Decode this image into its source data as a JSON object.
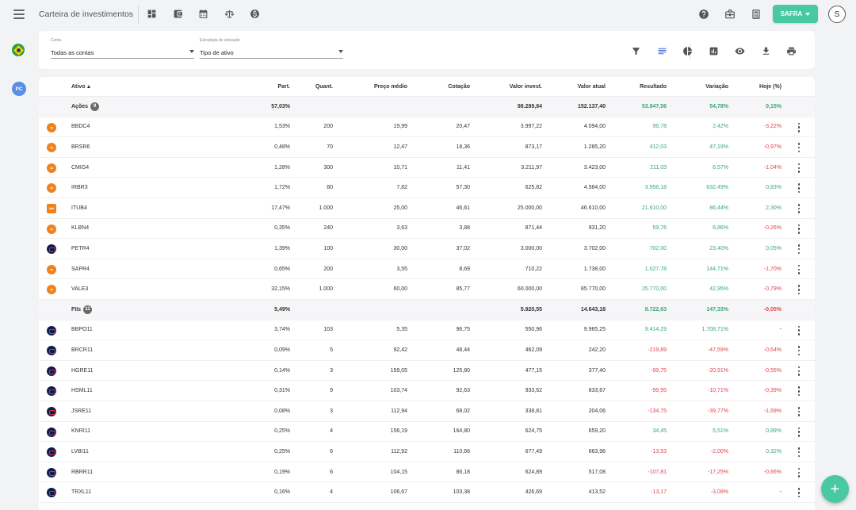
{
  "header": {
    "title": "Carteira de investimentos",
    "toolbar_icons": [
      "dashboard-icon",
      "wallet-icon",
      "calendar-icon",
      "balance-scale-icon",
      "dollar-circle-icon"
    ],
    "right_icons": [
      "help-icon",
      "briefcase-icon",
      "calculator-icon"
    ],
    "bank_label": "SAFRA",
    "user_initial": "S"
  },
  "side": {
    "pc_label": "PC"
  },
  "filters": {
    "conta_label": "Conta",
    "conta_value": "Todas as contas",
    "estrategia_label": "Estratégia de alocação",
    "estrategia_value": "Tipo de ativo",
    "actions": [
      "filter-icon",
      "list-view-icon",
      "pie-chart-icon",
      "bar-chart-icon",
      "eye-icon",
      "download-icon",
      "print-icon"
    ]
  },
  "colors": {
    "accent": "#49c9a0",
    "positive": "#3aa67a",
    "negative": "#e0454f",
    "active_icon": "#3f6ad8"
  },
  "table": {
    "columns": {
      "ativo": "Ativo",
      "part": "Part.",
      "quant": "Quant.",
      "preco": "Preço médio",
      "cotacao": "Cotação",
      "invest": "Valor invest.",
      "atual": "Valor atual",
      "resultado": "Resultado",
      "variacao": "Variação",
      "hoje": "Hoje (%)"
    },
    "rows": [
      {
        "group": true,
        "ativo": "Ações",
        "count": "9",
        "part": "57,03%",
        "quant": "",
        "preco": "",
        "cotacao": "",
        "invest": "98.289,84",
        "atual": "152.137,40",
        "resultado": "53.847,56",
        "variacao": "54,78%",
        "hoje": "0,15%",
        "res_s": "pos",
        "var_s": "pos",
        "hoje_s": "pos"
      },
      {
        "logo": "orange",
        "logo_text": "xp",
        "ativo": "BBDC4",
        "part": "1,53%",
        "quant": "200",
        "preco": "19,99",
        "cotacao": "20,47",
        "invest": "3.997,22",
        "atual": "4.094,00",
        "resultado": "96,78",
        "variacao": "2,42%",
        "hoje": "-3,22%",
        "res_s": "pos",
        "var_s": "pos",
        "hoje_s": "neg"
      },
      {
        "logo": "orange",
        "logo_text": "xp",
        "ativo": "BRSR6",
        "part": "0,48%",
        "quant": "70",
        "preco": "12,47",
        "cotacao": "18,36",
        "invest": "873,17",
        "atual": "1.285,20",
        "resultado": "412,03",
        "variacao": "47,19%",
        "hoje": "-0,97%",
        "res_s": "pos",
        "var_s": "pos",
        "hoje_s": "neg"
      },
      {
        "logo": "orange",
        "logo_text": "xp",
        "ativo": "CMIG4",
        "part": "1,28%",
        "quant": "300",
        "preco": "10,71",
        "cotacao": "11,41",
        "invest": "3.211,97",
        "atual": "3.423,00",
        "resultado": "211,03",
        "variacao": "6,57%",
        "hoje": "-1,04%",
        "res_s": "pos",
        "var_s": "pos",
        "hoje_s": "neg"
      },
      {
        "logo": "orange",
        "logo_text": "xp",
        "ativo": "IRBR3",
        "part": "1,72%",
        "quant": "80",
        "preco": "7,82",
        "cotacao": "57,30",
        "invest": "625,82",
        "atual": "4.584,00",
        "resultado": "3.958,18",
        "variacao": "632,49%",
        "hoje": "0,83%",
        "res_s": "pos",
        "var_s": "pos",
        "hoje_s": "pos"
      },
      {
        "logo": "orange sq",
        "logo_text": "itaú",
        "ativo": "ITUB4",
        "part": "17,47%",
        "quant": "1.000",
        "preco": "25,00",
        "cotacao": "46,61",
        "invest": "25.000,00",
        "atual": "46.610,00",
        "resultado": "21.610,00",
        "variacao": "86,44%",
        "hoje": "2,30%",
        "res_s": "pos",
        "var_s": "pos",
        "hoje_s": "pos"
      },
      {
        "logo": "orange",
        "logo_text": "xp",
        "ativo": "KLBN4",
        "part": "0,35%",
        "quant": "240",
        "preco": "3,63",
        "cotacao": "3,88",
        "invest": "871,44",
        "atual": "931,20",
        "resultado": "59,76",
        "variacao": "6,86%",
        "hoje": "-0,26%",
        "res_s": "pos",
        "var_s": "pos",
        "hoje_s": "neg"
      },
      {
        "logo": "navy",
        "logo_text": "",
        "ativo": "PETR4",
        "part": "1,39%",
        "quant": "100",
        "preco": "30,00",
        "cotacao": "37,02",
        "invest": "3.000,00",
        "atual": "3.702,00",
        "resultado": "702,00",
        "variacao": "23,40%",
        "hoje": "0,05%",
        "res_s": "pos",
        "var_s": "pos",
        "hoje_s": "pos"
      },
      {
        "logo": "orange",
        "logo_text": "xp",
        "ativo": "SAPR4",
        "part": "0,65%",
        "quant": "200",
        "preco": "3,55",
        "cotacao": "8,69",
        "invest": "710,22",
        "atual": "1.738,00",
        "resultado": "1.027,78",
        "variacao": "144,71%",
        "hoje": "-1,70%",
        "res_s": "pos",
        "var_s": "pos",
        "hoje_s": "neg"
      },
      {
        "logo": "orange",
        "logo_text": "xp",
        "ativo": "VALE3",
        "part": "32,15%",
        "quant": "1.000",
        "preco": "60,00",
        "cotacao": "85,77",
        "invest": "60.000,00",
        "atual": "85.770,00",
        "resultado": "25.770,00",
        "variacao": "42,95%",
        "hoje": "-0,79%",
        "res_s": "pos",
        "var_s": "pos",
        "hoje_s": "neg"
      },
      {
        "group": true,
        "ativo": "FIIs",
        "count": "11",
        "part": "5,49%",
        "quant": "",
        "preco": "",
        "cotacao": "",
        "invest": "5.920,55",
        "atual": "14.643,18",
        "resultado": "8.722,63",
        "variacao": "147,33%",
        "hoje": "-0,05%",
        "res_s": "pos",
        "var_s": "pos",
        "hoje_s": "neg"
      },
      {
        "logo": "navy",
        "logo_text": "",
        "ativo": "BBPO11",
        "part": "3,74%",
        "quant": "103",
        "preco": "5,35",
        "cotacao": "96,75",
        "invest": "550,96",
        "atual": "9.965,25",
        "resultado": "9.414,29",
        "variacao": "1.708,71%",
        "hoje": "-",
        "res_s": "pos",
        "var_s": "pos",
        "hoje_s": ""
      },
      {
        "logo": "navy",
        "logo_text": "",
        "ativo": "BRCR11",
        "part": "0,09%",
        "quant": "5",
        "preco": "92,42",
        "cotacao": "48,44",
        "invest": "462,09",
        "atual": "242,20",
        "resultado": "-219,89",
        "variacao": "-47,59%",
        "hoje": "-0,64%",
        "res_s": "neg",
        "var_s": "neg",
        "hoje_s": "neg"
      },
      {
        "logo": "navy",
        "logo_text": "",
        "ativo": "HGRE11",
        "part": "0,14%",
        "quant": "3",
        "preco": "159,05",
        "cotacao": "125,80",
        "invest": "477,15",
        "atual": "377,40",
        "resultado": "-99,75",
        "variacao": "-20,91%",
        "hoje": "-0,55%",
        "res_s": "neg",
        "var_s": "neg",
        "hoje_s": "neg"
      },
      {
        "logo": "navy",
        "logo_text": "",
        "ativo": "HSML11",
        "part": "0,31%",
        "quant": "9",
        "preco": "103,74",
        "cotacao": "92,63",
        "invest": "933,62",
        "atual": "833,67",
        "resultado": "-99,95",
        "variacao": "-10,71%",
        "hoje": "-0,39%",
        "res_s": "neg",
        "var_s": "neg",
        "hoje_s": "neg"
      },
      {
        "logo": "navy",
        "logo_text": "",
        "ativo": "JSRE11",
        "part": "0,08%",
        "quant": "3",
        "preco": "112,94",
        "cotacao": "68,02",
        "invest": "338,81",
        "atual": "204,06",
        "resultado": "-134,75",
        "variacao": "-39,77%",
        "hoje": "-1,69%",
        "res_s": "neg",
        "var_s": "neg",
        "hoje_s": "neg"
      },
      {
        "logo": "navy",
        "logo_text": "",
        "ativo": "KNRI11",
        "part": "0,25%",
        "quant": "4",
        "preco": "156,19",
        "cotacao": "164,80",
        "invest": "624,75",
        "atual": "659,20",
        "resultado": "34,45",
        "variacao": "5,51%",
        "hoje": "0,89%",
        "res_s": "pos",
        "var_s": "pos",
        "hoje_s": "pos"
      },
      {
        "logo": "navy",
        "logo_text": "",
        "ativo": "LVBI11",
        "part": "0,25%",
        "quant": "6",
        "preco": "112,92",
        "cotacao": "110,66",
        "invest": "677,49",
        "atual": "663,96",
        "resultado": "-13,53",
        "variacao": "-2,00%",
        "hoje": "0,32%",
        "res_s": "neg",
        "var_s": "neg",
        "hoje_s": "pos"
      },
      {
        "logo": "navy",
        "logo_text": "",
        "ativo": "RBRR11",
        "part": "0,19%",
        "quant": "6",
        "preco": "104,15",
        "cotacao": "86,18",
        "invest": "624,89",
        "atual": "517,08",
        "resultado": "-107,81",
        "variacao": "-17,25%",
        "hoje": "-0,66%",
        "res_s": "neg",
        "var_s": "neg",
        "hoje_s": "neg"
      },
      {
        "logo": "navy",
        "logo_text": "",
        "ativo": "TRXL11",
        "part": "0,16%",
        "quant": "4",
        "preco": "106,67",
        "cotacao": "103,38",
        "invest": "426,69",
        "atual": "413,52",
        "resultado": "-13,17",
        "variacao": "-3,09%",
        "hoje": "-",
        "res_s": "neg",
        "var_s": "neg",
        "hoje_s": ""
      }
    ]
  },
  "fab_label": "+"
}
